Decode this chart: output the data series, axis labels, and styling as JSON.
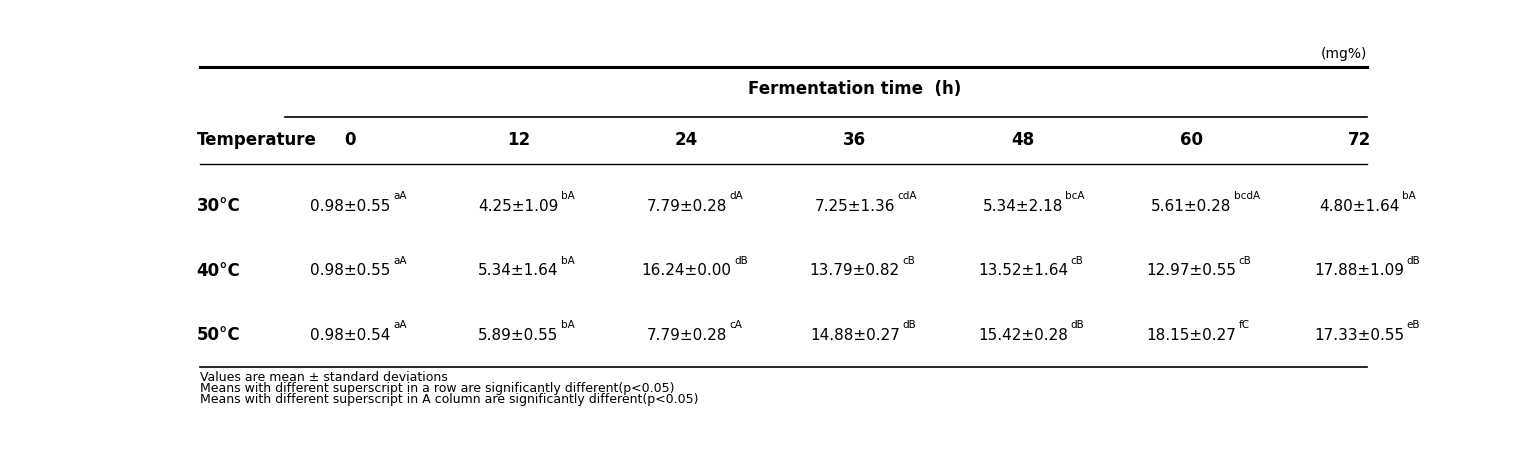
{
  "unit_label": "(mg%)",
  "col_header_main": "Fermentation time  (h)",
  "col_header_sub": [
    "0",
    "12",
    "24",
    "36",
    "48",
    "60",
    "72"
  ],
  "row_header_label": "Temperature",
  "row_labels": [
    "30°C",
    "40°C",
    "50°C"
  ],
  "cell_data": [
    [
      {
        "main": "0.98±0.55",
        "sup": "aA"
      },
      {
        "main": "4.25±1.09",
        "sup": "bA"
      },
      {
        "main": "7.79±0.28",
        "sup": "dA"
      },
      {
        "main": "7.25±1.36",
        "sup": "cdA"
      },
      {
        "main": "5.34±2.18",
        "sup": "bcA"
      },
      {
        "main": "5.61±0.28",
        "sup": "bcdA"
      },
      {
        "main": "4.80±1.64",
        "sup": "bA"
      }
    ],
    [
      {
        "main": "0.98±0.55",
        "sup": "aA"
      },
      {
        "main": "5.34±1.64",
        "sup": "bA"
      },
      {
        "main": "16.24±0.00",
        "sup": "dB"
      },
      {
        "main": "13.79±0.82",
        "sup": "cB"
      },
      {
        "main": "13.52±1.64",
        "sup": "cB"
      },
      {
        "main": "12.97±0.55",
        "sup": "cB"
      },
      {
        "main": "17.88±1.09",
        "sup": "dB"
      }
    ],
    [
      {
        "main": "0.98±0.54",
        "sup": "aA"
      },
      {
        "main": "5.89±0.55",
        "sup": "bA"
      },
      {
        "main": "7.79±0.28",
        "sup": "cA"
      },
      {
        "main": "14.88±0.27",
        "sup": "dB"
      },
      {
        "main": "15.42±0.28",
        "sup": "dB"
      },
      {
        "main": "18.15±0.27",
        "sup": "fC"
      },
      {
        "main": "17.33±0.55",
        "sup": "eB"
      }
    ]
  ],
  "footnotes": [
    "Values are mean ± standard deviations",
    "Means with different superscript in a row are significantly different(p<0.05)",
    "Means with different superscript in A column are significantly different(p<0.05)"
  ],
  "background_color": "#ffffff",
  "text_color": "#000000",
  "main_fontsize": 11,
  "sup_fontsize": 7.5,
  "header_fontsize": 12,
  "footnote_fontsize": 9
}
